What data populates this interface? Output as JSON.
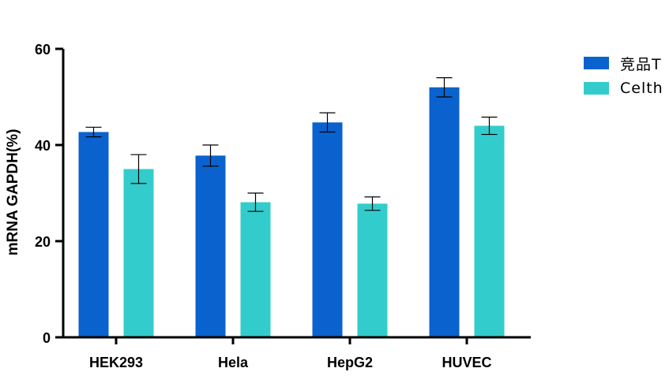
{
  "chart_data": {
    "type": "bar",
    "title": "",
    "xlabel": "",
    "ylabel": "mRNA GAPDH(%)",
    "ylim": [
      0,
      60
    ],
    "yticks": [
      0,
      20,
      40,
      60
    ],
    "categories": [
      "HEK293",
      "Hela",
      "HepG2",
      "HUVEC"
    ],
    "series": [
      {
        "name": "竞品T",
        "color": "#0a62cf",
        "values": [
          42.7,
          37.8,
          44.7,
          52.0
        ],
        "errors": [
          1.0,
          2.2,
          2.0,
          2.0
        ]
      },
      {
        "name": "Celth",
        "color": "#33cccc",
        "values": [
          35.0,
          28.1,
          27.8,
          44.0
        ],
        "errors": [
          3.0,
          1.9,
          1.4,
          1.8
        ]
      }
    ],
    "legend_position": "top-right"
  }
}
